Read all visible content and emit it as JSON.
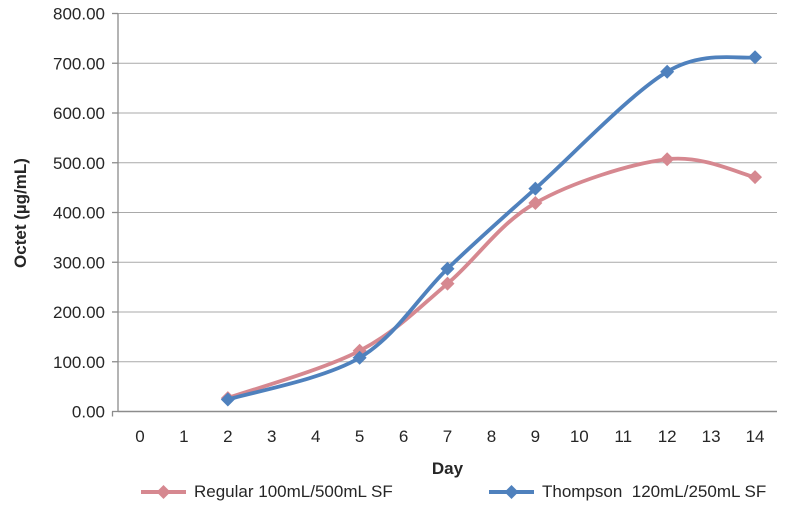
{
  "chart_data": {
    "type": "line",
    "title": "",
    "xlabel": "Day",
    "ylabel": "Octet (µg/mL)",
    "categories": [
      "0",
      "1",
      "2",
      "3",
      "4",
      "5",
      "6",
      "7",
      "8",
      "9",
      "10",
      "11",
      "12",
      "13",
      "14"
    ],
    "x": [
      2,
      5,
      7,
      9,
      12,
      14
    ],
    "series": [
      {
        "name": "Regular 100mL/500mL SF",
        "color": "#d68890",
        "marker": "diamond",
        "values": [
          27,
          122,
          257,
          419,
          507,
          471
        ]
      },
      {
        "name": "Thompson  120mL/250mL SF",
        "color": "#4f81bd",
        "marker": "diamond",
        "values": [
          24,
          108,
          287,
          448,
          683,
          712
        ]
      }
    ],
    "ylim": [
      0,
      800
    ],
    "ytick_step": 100,
    "ytick_decimals": 2,
    "grid": "horizontal",
    "legend_position": "bottom",
    "smooth": true
  },
  "colors": {
    "gridline": "#a9a9a9",
    "axis": "#8c8c8c",
    "text": "#262626"
  }
}
